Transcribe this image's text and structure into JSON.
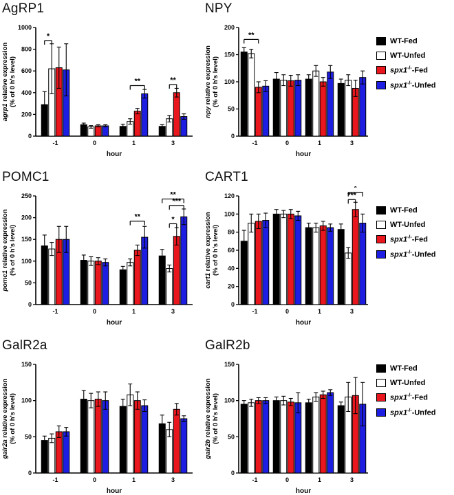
{
  "colors": [
    "#000000",
    "#ffffff",
    "#e9161d",
    "#1e1ee2"
  ],
  "series_names": [
    "WT-Fed",
    "WT-Unfed",
    "spx1-/--Fed",
    "spx1-/--Unfed"
  ],
  "legend": {
    "items": [
      {
        "pre_italic": "",
        "sup": "",
        "plain": "WT-Fed",
        "color": "#000000"
      },
      {
        "pre_italic": "",
        "sup": "",
        "plain": "WT-Unfed",
        "color": "#ffffff"
      },
      {
        "pre_italic": "spx1",
        "sup": "-/-",
        "plain": "-Fed",
        "color": "#e9161d"
      },
      {
        "pre_italic": "spx1",
        "sup": "-/-",
        "plain": "-Unfed",
        "color": "#1e1ee2"
      }
    ]
  },
  "chart_data": [
    {
      "type": "bar",
      "title": "AgRP1",
      "ylabel_italic": "agrp1",
      "ylabel_rest": "relative expression",
      "ylabel_line2": "(% of 0 h's level)",
      "xlabel": "hour",
      "categories": [
        "-1",
        "0",
        "1",
        "3"
      ],
      "ylim": [
        0,
        1000
      ],
      "yticks": [
        0,
        200,
        400,
        600,
        800,
        1000
      ],
      "series": [
        {
          "name": "WT-Fed",
          "values": [
            290,
            105,
            90,
            90
          ],
          "errors": [
            120,
            15,
            20,
            15
          ]
        },
        {
          "name": "WT-Unfed",
          "values": [
            620,
            85,
            135,
            160
          ],
          "errors": [
            230,
            12,
            25,
            30
          ]
        },
        {
          "name": "spx1-/--Fed",
          "values": [
            630,
            95,
            230,
            400
          ],
          "errors": [
            190,
            10,
            25,
            40
          ]
        },
        {
          "name": "spx1-/--Unfed",
          "values": [
            610,
            95,
            390,
            180
          ],
          "errors": [
            240,
            10,
            40,
            25
          ]
        }
      ],
      "annotations": [
        {
          "cat": 0,
          "i": 0,
          "j": 1,
          "label": "*",
          "y": 880
        },
        {
          "cat": 2,
          "i": 1,
          "j": 3,
          "label": "**",
          "y": 465
        },
        {
          "cat": 3,
          "i": 1,
          "j": 2,
          "label": "**",
          "y": 475
        }
      ]
    },
    {
      "type": "bar",
      "title": "NPY",
      "ylabel_italic": "npy",
      "ylabel_rest": "relative expression",
      "ylabel_line2": "(% of 0 h's level)",
      "xlabel": "hour",
      "categories": [
        "-1",
        "0",
        "1",
        "3"
      ],
      "ylim": [
        0,
        200
      ],
      "yticks": [
        0,
        50,
        100,
        150,
        200
      ],
      "series": [
        {
          "name": "WT-Fed",
          "values": [
            155,
            105,
            105,
            97
          ],
          "errors": [
            8,
            12,
            8,
            8
          ]
        },
        {
          "name": "WT-Unfed",
          "values": [
            152,
            103,
            120,
            103
          ],
          "errors": [
            8,
            10,
            10,
            10
          ]
        },
        {
          "name": "spx1-/--Fed",
          "values": [
            90,
            102,
            100,
            88
          ],
          "errors": [
            10,
            10,
            8,
            15
          ]
        },
        {
          "name": "spx1-/--Unfed",
          "values": [
            92,
            103,
            118,
            108
          ],
          "errors": [
            10,
            10,
            12,
            12
          ]
        }
      ],
      "annotations": [
        {
          "cat": 0,
          "i": 0,
          "j": 2,
          "label": "**",
          "y": 178
        }
      ]
    },
    {
      "type": "bar",
      "title": "POMC1",
      "ylabel_italic": "pomc1",
      "ylabel_rest": "relative expression",
      "ylabel_line2": "(% of 0 h's level)",
      "xlabel": "hour",
      "categories": [
        "-1",
        "0",
        "1",
        "3"
      ],
      "ylim": [
        0,
        250
      ],
      "yticks": [
        0,
        50,
        100,
        150,
        200,
        250
      ],
      "series": [
        {
          "name": "WT-Fed",
          "values": [
            135,
            102,
            80,
            112
          ],
          "errors": [
            25,
            12,
            8,
            15
          ]
        },
        {
          "name": "WT-Unfed",
          "values": [
            128,
            100,
            97,
            83
          ],
          "errors": [
            15,
            10,
            8,
            8
          ]
        },
        {
          "name": "spx1-/--Fed",
          "values": [
            150,
            100,
            125,
            157
          ],
          "errors": [
            30,
            8,
            12,
            20
          ]
        },
        {
          "name": "spx1-/--Unfed",
          "values": [
            150,
            97,
            155,
            202
          ],
          "errors": [
            30,
            8,
            25,
            18
          ]
        }
      ],
      "annotations": [
        {
          "cat": 2,
          "i": 1,
          "j": 3,
          "label": "**",
          "y": 192
        },
        {
          "cat": 3,
          "i": 1,
          "j": 2,
          "label": "*",
          "y": 186
        },
        {
          "cat": 3,
          "i": 1,
          "j": 3,
          "label": "***",
          "y": 228
        },
        {
          "cat": 3,
          "i": 0,
          "j": 3,
          "label": "**",
          "y": 243
        }
      ]
    },
    {
      "type": "bar",
      "title": "CART1",
      "ylabel_italic": "cart1",
      "ylabel_rest": "relative expression",
      "ylabel_line2": "(% of 0 h's level)",
      "xlabel": "hour",
      "categories": [
        "-1",
        "0",
        "1",
        "3"
      ],
      "ylim": [
        0,
        120
      ],
      "yticks": [
        0,
        20,
        40,
        60,
        80,
        100,
        120
      ],
      "series": [
        {
          "name": "WT-Fed",
          "values": [
            70,
            100,
            85,
            83
          ],
          "errors": [
            12,
            5,
            5,
            6
          ]
        },
        {
          "name": "WT-Unfed",
          "values": [
            90,
            100,
            85,
            57
          ],
          "errors": [
            10,
            4,
            5,
            6
          ]
        },
        {
          "name": "spx1-/--Fed",
          "values": [
            92,
            100,
            87,
            105
          ],
          "errors": [
            8,
            5,
            5,
            8
          ]
        },
        {
          "name": "spx1-/--Unfed",
          "values": [
            93,
            98,
            85,
            90
          ],
          "errors": [
            8,
            5,
            4,
            10
          ]
        }
      ],
      "annotations": [
        {
          "cat": 3,
          "i": 1,
          "j": 2,
          "label": "***",
          "y": 116
        },
        {
          "cat": 3,
          "i": 1,
          "j": 3,
          "label": "*",
          "y": 124
        }
      ]
    },
    {
      "type": "bar",
      "title": "GalR2a",
      "ylabel_italic": "galr2a",
      "ylabel_rest": "relative expression",
      "ylabel_line2": "(% of 0 h's level)",
      "xlabel": "hour",
      "categories": [
        "-1",
        "0",
        "1",
        "3"
      ],
      "ylim": [
        0,
        150
      ],
      "yticks": [
        0,
        50,
        100,
        150
      ],
      "series": [
        {
          "name": "WT-Fed",
          "values": [
            45,
            102,
            92,
            68
          ],
          "errors": [
            6,
            12,
            10,
            12
          ]
        },
        {
          "name": "WT-Unfed",
          "values": [
            48,
            100,
            108,
            60
          ],
          "errors": [
            6,
            10,
            15,
            10
          ]
        },
        {
          "name": "spx1-/--Fed",
          "values": [
            57,
            102,
            100,
            88
          ],
          "errors": [
            8,
            10,
            12,
            8
          ]
        },
        {
          "name": "spx1-/--Unfed",
          "values": [
            57,
            100,
            93,
            75
          ],
          "errors": [
            6,
            12,
            8,
            4
          ]
        }
      ],
      "annotations": []
    },
    {
      "type": "bar",
      "title": "GalR2b",
      "ylabel_italic": "galr2b",
      "ylabel_rest": "relative expression",
      "ylabel_line2": "(% of 0 h's level)",
      "xlabel": "hour",
      "categories": [
        "-1",
        "0",
        "1",
        "3"
      ],
      "ylim": [
        0,
        150
      ],
      "yticks": [
        0,
        50,
        100,
        150
      ],
      "series": [
        {
          "name": "WT-Fed",
          "values": [
            95,
            100,
            97,
            93
          ],
          "errors": [
            5,
            5,
            5,
            5
          ]
        },
        {
          "name": "WT-Unfed",
          "values": [
            97,
            100,
            105,
            105
          ],
          "errors": [
            5,
            6,
            6,
            20
          ]
        },
        {
          "name": "spx1-/--Fed",
          "values": [
            100,
            98,
            108,
            107
          ],
          "errors": [
            4,
            5,
            5,
            25
          ]
        },
        {
          "name": "spx1-/--Unfed",
          "values": [
            100,
            97,
            111,
            95
          ],
          "errors": [
            4,
            14,
            4,
            30
          ]
        }
      ],
      "annotations": []
    }
  ]
}
